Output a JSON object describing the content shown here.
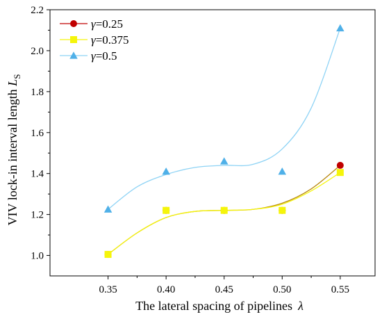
{
  "chart_data": {
    "type": "line",
    "xlabel": {
      "text": "The lateral spacing of pipelines",
      "symbol": "λ"
    },
    "ylabel": {
      "text": "VIV lock-in interval length ",
      "symbol": "L",
      "subscript": "S"
    },
    "xlim": [
      0.3,
      0.58
    ],
    "ylim": [
      0.9,
      2.2
    ],
    "x_ticks": [
      0.35,
      0.4,
      0.45,
      0.5,
      0.55
    ],
    "x_tick_labels": [
      "0.35",
      "0.40",
      "0.45",
      "0.50",
      "0.55"
    ],
    "y_ticks": [
      1.0,
      1.2,
      1.4,
      1.6,
      1.8,
      2.0,
      2.2
    ],
    "y_tick_labels": [
      "1.0",
      "1.2",
      "1.4",
      "1.6",
      "1.8",
      "2.0",
      "2.2"
    ],
    "grid": false,
    "legend_position": "top-left",
    "x": [
      0.35,
      0.4,
      0.45,
      0.5,
      0.55
    ],
    "series": [
      {
        "name": "γ=0.25",
        "values": [
          1.005,
          1.22,
          1.22,
          1.22,
          1.44
        ],
        "marker": "circle",
        "color": "#c00000"
      },
      {
        "name": "γ=0.375",
        "values": [
          1.005,
          1.22,
          1.22,
          1.22,
          1.405
        ],
        "marker": "square",
        "color": "#f5f50a"
      },
      {
        "name": "γ=0.5",
        "values": [
          1.225,
          1.41,
          1.46,
          1.41,
          2.11
        ],
        "marker": "triangle",
        "color": "#4fb0e8"
      }
    ],
    "fit_curves": [
      {
        "series": "γ=0.25",
        "color": "#b8860b",
        "x": [
          0.35,
          0.375,
          0.4,
          0.425,
          0.45,
          0.475,
          0.5,
          0.525,
          0.55
        ],
        "y": [
          1.005,
          1.11,
          1.185,
          1.215,
          1.22,
          1.225,
          1.255,
          1.325,
          1.44
        ]
      },
      {
        "series": "γ=0.375",
        "color": "#f5f50a",
        "x": [
          0.35,
          0.375,
          0.4,
          0.425,
          0.45,
          0.475,
          0.5,
          0.525,
          0.55
        ],
        "y": [
          1.005,
          1.11,
          1.185,
          1.215,
          1.22,
          1.225,
          1.25,
          1.315,
          1.405
        ]
      },
      {
        "series": "γ=0.5",
        "color": "#8ed3f5",
        "x": [
          0.35,
          0.375,
          0.4,
          0.425,
          0.45,
          0.475,
          0.5,
          0.525,
          0.55
        ],
        "y": [
          1.225,
          1.335,
          1.395,
          1.43,
          1.44,
          1.445,
          1.52,
          1.72,
          2.11
        ]
      }
    ]
  }
}
